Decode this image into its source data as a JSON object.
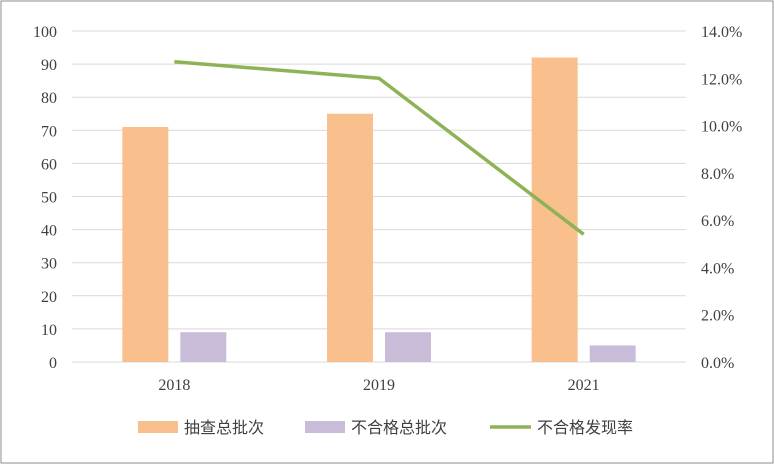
{
  "chart_data": {
    "type": "bar",
    "categories": [
      "2018",
      "2019",
      "2021"
    ],
    "series": [
      {
        "name": "抽查总批次",
        "type": "bar",
        "axis": "left",
        "values": [
          71,
          75,
          92
        ],
        "color": "#F9C08E"
      },
      {
        "name": "不合格总批次",
        "type": "bar",
        "axis": "left",
        "values": [
          9,
          9,
          5
        ],
        "color": "#C9BCD9"
      },
      {
        "name": "不合格发现率",
        "type": "line",
        "axis": "right",
        "values": [
          12.7,
          12.0,
          5.4
        ],
        "color": "#8DB356"
      }
    ],
    "y_left": {
      "range": [
        0,
        100
      ],
      "ticks": [
        "0",
        "10",
        "20",
        "30",
        "40",
        "50",
        "60",
        "70",
        "80",
        "90",
        "100"
      ]
    },
    "y_right": {
      "range": [
        0,
        14
      ],
      "unit": "%",
      "ticks": [
        "0.0%",
        "2.0%",
        "4.0%",
        "6.0%",
        "8.0%",
        "10.0%",
        "12.0%",
        "14.0%"
      ]
    },
    "grid": true,
    "legend_position": "bottom",
    "title": "",
    "xlabel": "",
    "ylabel": ""
  }
}
